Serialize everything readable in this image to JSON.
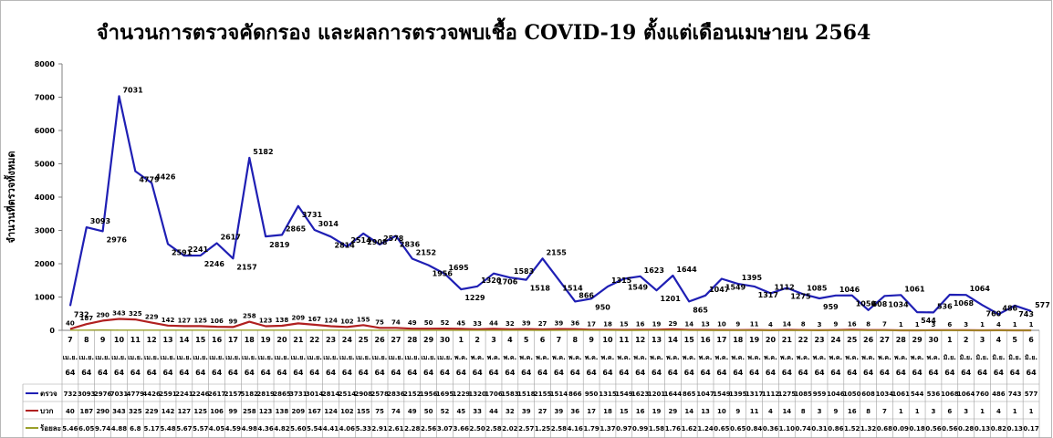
{
  "chart_data": {
    "type": "line",
    "title": "จำนวนการตรวจคัดกรอง และผลการตรวจพบเชื้อ COVID-19 ตั้งแต่เดือนเมษายน 2564",
    "ylabel": "จำนวนที่ตรวจทั้งหมด",
    "ylim": [
      0,
      8000
    ],
    "yticks": [
      "0",
      "1000",
      "2000",
      "3000",
      "4000",
      "5000",
      "6000",
      "7000",
      "8000"
    ],
    "grid": false,
    "day_labels": [
      "7",
      "8",
      "9",
      "10",
      "11",
      "12",
      "13",
      "14",
      "15",
      "16",
      "17",
      "18",
      "19",
      "20",
      "21",
      "22",
      "23",
      "24",
      "25",
      "26",
      "27",
      "28",
      "29",
      "30",
      "1",
      "2",
      "3",
      "4",
      "5",
      "6",
      "7",
      "8",
      "9",
      "10",
      "11",
      "12",
      "13",
      "14",
      "15",
      "16",
      "17",
      "18",
      "19",
      "20",
      "21",
      "22",
      "23",
      "24",
      "25",
      "26",
      "27",
      "28",
      "29",
      "30",
      "1",
      "2",
      "3",
      "4",
      "5",
      "6"
    ],
    "month_labels": [
      "เม.ย.",
      "เม.ย.",
      "เม.ย.",
      "เม.ย.",
      "เม.ย.",
      "เม.ย.",
      "เม.ย.",
      "เม.ย.",
      "เม.ย.",
      "เม.ย.",
      "เม.ย.",
      "เม.ย.",
      "เม.ย.",
      "เม.ย.",
      "เม.ย.",
      "เม.ย.",
      "เม.ย.",
      "เม.ย.",
      "เม.ย.",
      "เม.ย.",
      "เม.ย.",
      "เม.ย.",
      "เม.ย.",
      "เม.ย.",
      "พ.ค.",
      "พ.ค.",
      "พ.ค.",
      "พ.ค.",
      "พ.ค.",
      "พ.ค.",
      "พ.ค.",
      "พ.ค.",
      "พ.ค.",
      "พ.ค.",
      "พ.ค.",
      "พ.ค.",
      "พ.ค.",
      "พ.ค.",
      "พ.ค.",
      "พ.ค.",
      "พ.ค.",
      "พ.ค.",
      "พ.ค.",
      "พ.ค.",
      "พ.ค.",
      "พ.ค.",
      "พ.ค.",
      "พ.ค.",
      "พ.ค.",
      "พ.ค.",
      "พ.ค.",
      "พ.ค.",
      "พ.ค.",
      "พ.ค.",
      "มิ.ย.",
      "มิ.ย.",
      "มิ.ย.",
      "มิ.ย.",
      "มิ.ย.",
      "มิ.ย."
    ],
    "year_label": "64",
    "series": [
      {
        "name": "ตรวจ",
        "color": "#1f1fb4",
        "values": [
          732,
          3093,
          2976,
          7031,
          4779,
          4426,
          2591,
          2241,
          2246,
          2617,
          2157,
          5182,
          2819,
          2865,
          3731,
          3014,
          2814,
          2514,
          2908,
          2578,
          2836,
          2152,
          1956,
          1695,
          1229,
          1320,
          1706,
          1583,
          1518,
          2155,
          1514,
          866,
          950,
          1315,
          1549,
          1623,
          1201,
          1644,
          865,
          1047,
          1549,
          1395,
          1317,
          1112,
          1275,
          1085,
          959,
          1046,
          1050,
          608,
          1034,
          1061,
          544,
          536,
          1068,
          1064,
          760,
          486,
          743,
          577
        ],
        "point_labels": [
          "732",
          "3093",
          "2976",
          "7031",
          "4779",
          "4426",
          "2591",
          "2241",
          "2246",
          "2617",
          "2157",
          "5182",
          "2819",
          "2865",
          "3731",
          "3014",
          "2814",
          "2514",
          "2908",
          "2578",
          "2836",
          "2152",
          "1956",
          "1695",
          "1229",
          "1320",
          "1706",
          "1583",
          "1518",
          "2155",
          "1514",
          "866",
          "950",
          "1315",
          "1549",
          "1623",
          "1201",
          "1644",
          "865",
          "1047",
          "1549",
          "1395",
          "1317",
          "1112",
          "1275",
          "1085",
          "959",
          "1046",
          "1050",
          "608",
          "1034",
          "1061",
          "544",
          "536",
          "1068",
          "1064",
          "760",
          "486",
          "743",
          "577"
        ]
      },
      {
        "name": "บวก",
        "color": "#b02020",
        "values": [
          40,
          187,
          290,
          343,
          325,
          229,
          142,
          127,
          125,
          106,
          99,
          258,
          123,
          138,
          209,
          167,
          124,
          102,
          155,
          75,
          74,
          49,
          50,
          52,
          45,
          33,
          44,
          32,
          39,
          27,
          39,
          36,
          17,
          18,
          15,
          16,
          19,
          29,
          14,
          13,
          10,
          9,
          11,
          4,
          14,
          8,
          3,
          9,
          16,
          8,
          7,
          1,
          1,
          3,
          6,
          3,
          1,
          4,
          1,
          1
        ],
        "point_labels": [
          "40",
          "187",
          "290",
          "343",
          "325",
          "229",
          "142",
          "127",
          "125",
          "106",
          "99",
          "258",
          "123",
          "138",
          "209",
          "167",
          "124",
          "102",
          "155",
          "75",
          "74",
          "49",
          "50",
          "52",
          "45",
          "33",
          "44",
          "32",
          "39",
          "27",
          "39",
          "36",
          "17",
          "18",
          "15",
          "16",
          "19",
          "29",
          "14",
          "13",
          "10",
          "9",
          "11",
          "4",
          "14",
          "8",
          "3",
          "9",
          "16",
          "8",
          "7",
          "1",
          "1",
          "3",
          "6",
          "3",
          "1",
          "4",
          "1",
          "1"
        ]
      },
      {
        "name": "ร้อยละ",
        "color": "#9aa02a",
        "values": [
          5.46,
          6.05,
          9.74,
          4.88,
          6.8,
          5.17,
          5.48,
          5.67,
          5.57,
          4.05,
          4.59,
          4.98,
          4.36,
          4.82,
          5.6,
          5.54,
          4.41,
          4.06,
          5.33,
          2.91,
          2.61,
          2.28,
          2.56,
          3.07,
          3.66,
          2.5,
          2.58,
          2.02,
          2.57,
          1.25,
          2.58,
          4.16,
          1.79,
          1.37,
          0.97,
          0.99,
          1.58,
          1.76,
          1.62,
          1.24,
          0.65,
          0.65,
          0.84,
          0.36,
          1.1,
          0.74,
          0.31,
          0.86,
          1.52,
          1.32,
          0.68,
          0.09,
          0.18,
          0.56,
          0.56,
          0.28,
          0.13,
          0.82,
          0.13,
          0.17
        ]
      }
    ],
    "table_rows": [
      {
        "label": "ตรวจ",
        "marker": "#1f1fb4",
        "cells": [
          "732",
          "3093",
          "2976",
          "7031",
          "4779",
          "4426",
          "2591",
          "2241",
          "2246",
          "2617",
          "2157",
          "5182",
          "2819",
          "2865",
          "3731",
          "3014",
          "2814",
          "2514",
          "2908",
          "2578",
          "2836",
          "2152",
          "1956",
          "1695",
          "1229",
          "1320",
          "1706",
          "1583",
          "1518",
          "2155",
          "1514",
          "866",
          "950",
          "1315",
          "1549",
          "1623",
          "1201",
          "1644",
          "865",
          "1047",
          "1549",
          "1395",
          "1317",
          "1112",
          "1275",
          "1085",
          "959",
          "1046",
          "1050",
          "608",
          "1034",
          "1061",
          "544",
          "536",
          "1068",
          "1064",
          "760",
          "486",
          "743",
          "577"
        ]
      },
      {
        "label": "บวก",
        "marker": "#b02020",
        "cells": [
          "40",
          "187",
          "290",
          "343",
          "325",
          "229",
          "142",
          "127",
          "125",
          "106",
          "99",
          "258",
          "123",
          "138",
          "209",
          "167",
          "124",
          "102",
          "155",
          "75",
          "74",
          "49",
          "50",
          "52",
          "45",
          "33",
          "44",
          "32",
          "39",
          "27",
          "39",
          "36",
          "17",
          "18",
          "15",
          "16",
          "19",
          "29",
          "14",
          "13",
          "10",
          "9",
          "11",
          "4",
          "14",
          "8",
          "3",
          "9",
          "16",
          "8",
          "7",
          "1",
          "1",
          "3",
          "6",
          "3",
          "1",
          "4",
          "1",
          "1"
        ]
      },
      {
        "label": "ร้อยละ",
        "marker": "#9aa02a",
        "cells": [
          "5.46",
          "6.05",
          "9.74",
          "4.88",
          "6.8",
          "5.17",
          "5.48",
          "5.67",
          "5.57",
          "4.05",
          "4.59",
          "4.98",
          "4.36",
          "4.82",
          "5.60",
          "5.54",
          "4.41",
          "4.06",
          "5.33",
          "2.91",
          "2.61",
          "2.28",
          "2.56",
          "3.07",
          "3.66",
          "2.50",
          "2.58",
          "2.02",
          "2.57",
          "1.25",
          "2.58",
          "4.16",
          "1.79",
          "1.37",
          "0.97",
          "0.99",
          "1.58",
          "1.76",
          "1.62",
          "1.24",
          "0.65",
          "0.65",
          "0.84",
          "0.36",
          "1.10",
          "0.74",
          "0.31",
          "0.86",
          "1.52",
          "1.32",
          "0.68",
          "0.09",
          "0.18",
          "0.56",
          "0.56",
          "0.28",
          "0.13",
          "0.82",
          "0.13",
          "0.17"
        ]
      }
    ]
  }
}
